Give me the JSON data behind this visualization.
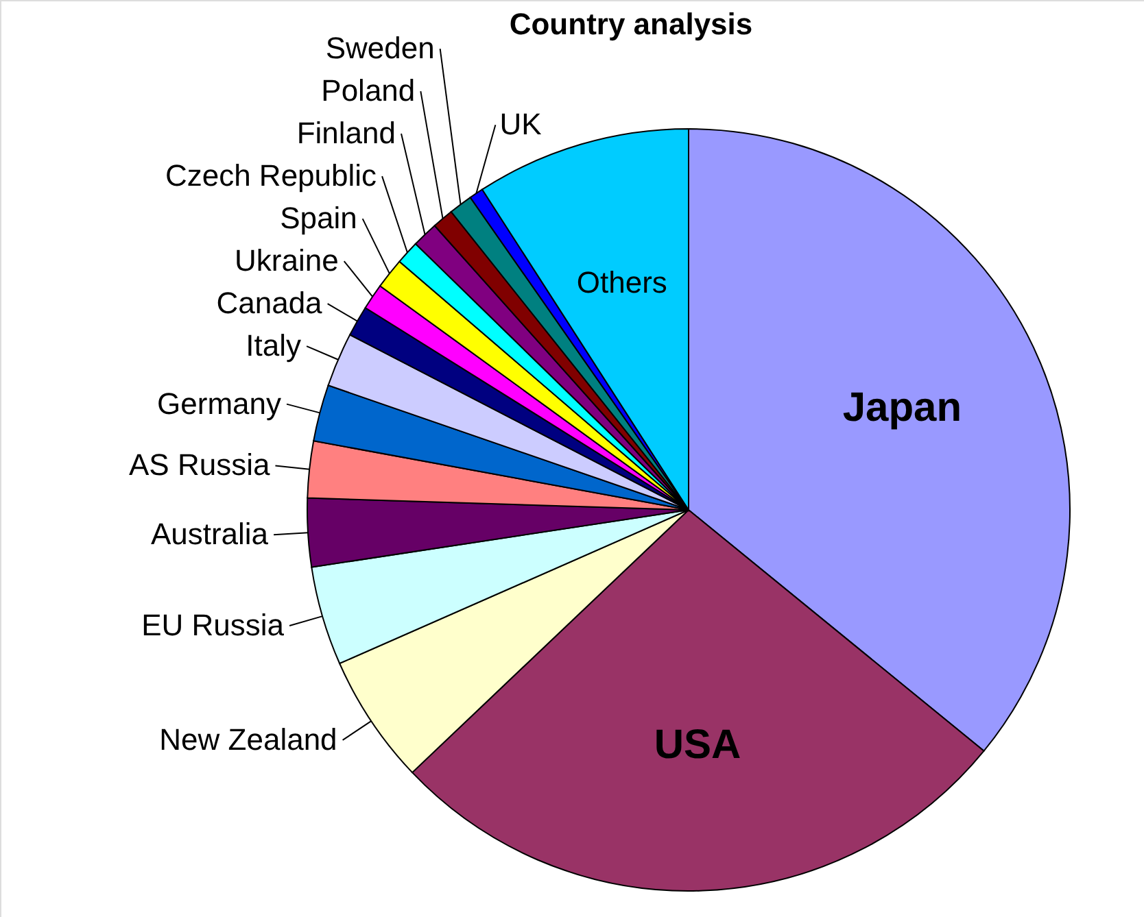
{
  "chart_data": {
    "type": "pie",
    "title": "Country analysis",
    "categories": [
      "Japan",
      "USA",
      "New Zealand",
      "EU Russia",
      "Australia",
      "AS Russia",
      "Germany",
      "Italy",
      "Canada",
      "Ukraine",
      "Spain",
      "Czech Republic",
      "Finland",
      "Poland",
      "Sweden",
      "UK",
      "Others"
    ],
    "values": [
      35.9,
      27.0,
      5.5,
      4.2,
      2.9,
      2.4,
      2.4,
      2.3,
      1.3,
      1.1,
      1.3,
      1.0,
      1.1,
      0.9,
      1.0,
      0.6,
      9.1
    ],
    "colors": [
      "#9999ff",
      "#993366",
      "#ffffcc",
      "#ccffff",
      "#660066",
      "#ff8080",
      "#0066cc",
      "#ccccff",
      "#000080",
      "#ff00ff",
      "#ffff00",
      "#00ffff",
      "#800080",
      "#800000",
      "#008080",
      "#0000ff",
      "#00ccff"
    ]
  }
}
